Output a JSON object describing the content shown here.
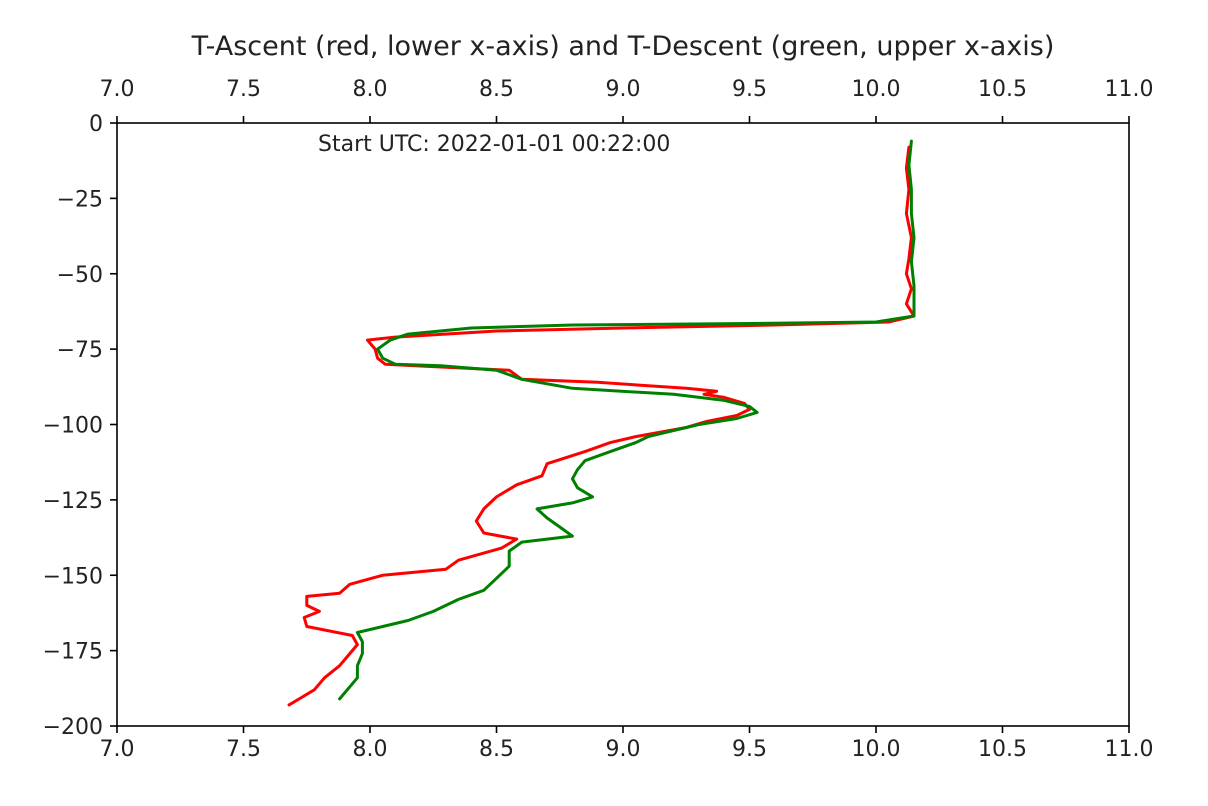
{
  "chart_data": {
    "type": "line",
    "title": "T-Ascent (red, lower x-axis) and T-Descent (green, upper x-axis)",
    "xlabel": "",
    "ylabel": "",
    "annotation": "Start UTC: 2022-01-01 00:22:00",
    "xlim": [
      7.0,
      11.0
    ],
    "ylim": [
      -200,
      0
    ],
    "x_ticks": [
      "7.0",
      "7.5",
      "8.0",
      "8.5",
      "9.0",
      "9.5",
      "10.0",
      "10.5",
      "11.0"
    ],
    "x_top_ticks": [
      "7.0",
      "7.5",
      "8.0",
      "8.5",
      "9.0",
      "9.5",
      "10.0",
      "10.5",
      "11.0"
    ],
    "y_ticks": [
      "0",
      "−25",
      "−50",
      "−75",
      "−100",
      "−125",
      "−150",
      "−175",
      "−200"
    ],
    "grid": false,
    "series": [
      {
        "axis": "lower",
        "color": "#ff0000",
        "points": [
          [
            10.13,
            -8
          ],
          [
            10.12,
            -15
          ],
          [
            10.13,
            -22
          ],
          [
            10.12,
            -30
          ],
          [
            10.14,
            -38
          ],
          [
            10.13,
            -45
          ],
          [
            10.12,
            -50
          ],
          [
            10.14,
            -55
          ],
          [
            10.12,
            -60
          ],
          [
            10.15,
            -64
          ],
          [
            10.05,
            -66
          ],
          [
            9.6,
            -67
          ],
          [
            9.0,
            -68
          ],
          [
            8.5,
            -69
          ],
          [
            8.1,
            -71
          ],
          [
            7.99,
            -72
          ],
          [
            8.02,
            -75
          ],
          [
            8.03,
            -78
          ],
          [
            8.06,
            -80
          ],
          [
            8.3,
            -81
          ],
          [
            8.55,
            -82
          ],
          [
            8.6,
            -85
          ],
          [
            8.9,
            -86
          ],
          [
            9.25,
            -88
          ],
          [
            9.37,
            -89
          ],
          [
            9.32,
            -90
          ],
          [
            9.4,
            -91
          ],
          [
            9.48,
            -93
          ],
          [
            9.5,
            -95
          ],
          [
            9.45,
            -97
          ],
          [
            9.33,
            -99
          ],
          [
            9.25,
            -101
          ],
          [
            9.05,
            -104
          ],
          [
            8.95,
            -106
          ],
          [
            8.85,
            -109
          ],
          [
            8.7,
            -113
          ],
          [
            8.68,
            -117
          ],
          [
            8.58,
            -120
          ],
          [
            8.5,
            -124
          ],
          [
            8.45,
            -128
          ],
          [
            8.42,
            -132
          ],
          [
            8.45,
            -136
          ],
          [
            8.58,
            -138
          ],
          [
            8.52,
            -141
          ],
          [
            8.35,
            -145
          ],
          [
            8.3,
            -148
          ],
          [
            8.05,
            -150
          ],
          [
            7.92,
            -153
          ],
          [
            7.88,
            -156
          ],
          [
            7.75,
            -157
          ],
          [
            7.75,
            -160
          ],
          [
            7.8,
            -162
          ],
          [
            7.74,
            -164
          ],
          [
            7.75,
            -167
          ],
          [
            7.93,
            -170
          ],
          [
            7.95,
            -173
          ],
          [
            7.92,
            -176
          ],
          [
            7.88,
            -180
          ],
          [
            7.82,
            -184
          ],
          [
            7.78,
            -188
          ],
          [
            7.72,
            -191
          ],
          [
            7.68,
            -193
          ]
        ]
      },
      {
        "axis": "upper",
        "color": "#008000",
        "points": [
          [
            10.14,
            -6
          ],
          [
            10.13,
            -14
          ],
          [
            10.14,
            -22
          ],
          [
            10.14,
            -30
          ],
          [
            10.15,
            -38
          ],
          [
            10.14,
            -46
          ],
          [
            10.15,
            -54
          ],
          [
            10.15,
            -60
          ],
          [
            10.15,
            -64
          ],
          [
            10.0,
            -66
          ],
          [
            9.5,
            -66.5
          ],
          [
            8.8,
            -67
          ],
          [
            8.4,
            -68
          ],
          [
            8.15,
            -70
          ],
          [
            8.08,
            -72
          ],
          [
            8.03,
            -75
          ],
          [
            8.05,
            -78
          ],
          [
            8.1,
            -80
          ],
          [
            8.28,
            -80.5
          ],
          [
            8.5,
            -82
          ],
          [
            8.6,
            -85
          ],
          [
            8.8,
            -88
          ],
          [
            9.2,
            -90
          ],
          [
            9.4,
            -92
          ],
          [
            9.5,
            -94
          ],
          [
            9.53,
            -96
          ],
          [
            9.45,
            -98
          ],
          [
            9.3,
            -100
          ],
          [
            9.2,
            -102
          ],
          [
            9.1,
            -104
          ],
          [
            9.05,
            -106
          ],
          [
            8.95,
            -109
          ],
          [
            8.85,
            -112
          ],
          [
            8.82,
            -115
          ],
          [
            8.8,
            -118
          ],
          [
            8.82,
            -121
          ],
          [
            8.88,
            -124
          ],
          [
            8.8,
            -126
          ],
          [
            8.66,
            -128
          ],
          [
            8.7,
            -131
          ],
          [
            8.75,
            -134
          ],
          [
            8.8,
            -137
          ],
          [
            8.6,
            -139
          ],
          [
            8.55,
            -142
          ],
          [
            8.55,
            -147
          ],
          [
            8.5,
            -151
          ],
          [
            8.45,
            -155
          ],
          [
            8.35,
            -158
          ],
          [
            8.25,
            -162
          ],
          [
            8.15,
            -165
          ],
          [
            8.05,
            -167
          ],
          [
            7.95,
            -169
          ],
          [
            7.97,
            -172
          ],
          [
            7.97,
            -176
          ],
          [
            7.95,
            -180
          ],
          [
            7.95,
            -184
          ],
          [
            7.92,
            -187
          ],
          [
            7.88,
            -191
          ]
        ]
      }
    ]
  }
}
